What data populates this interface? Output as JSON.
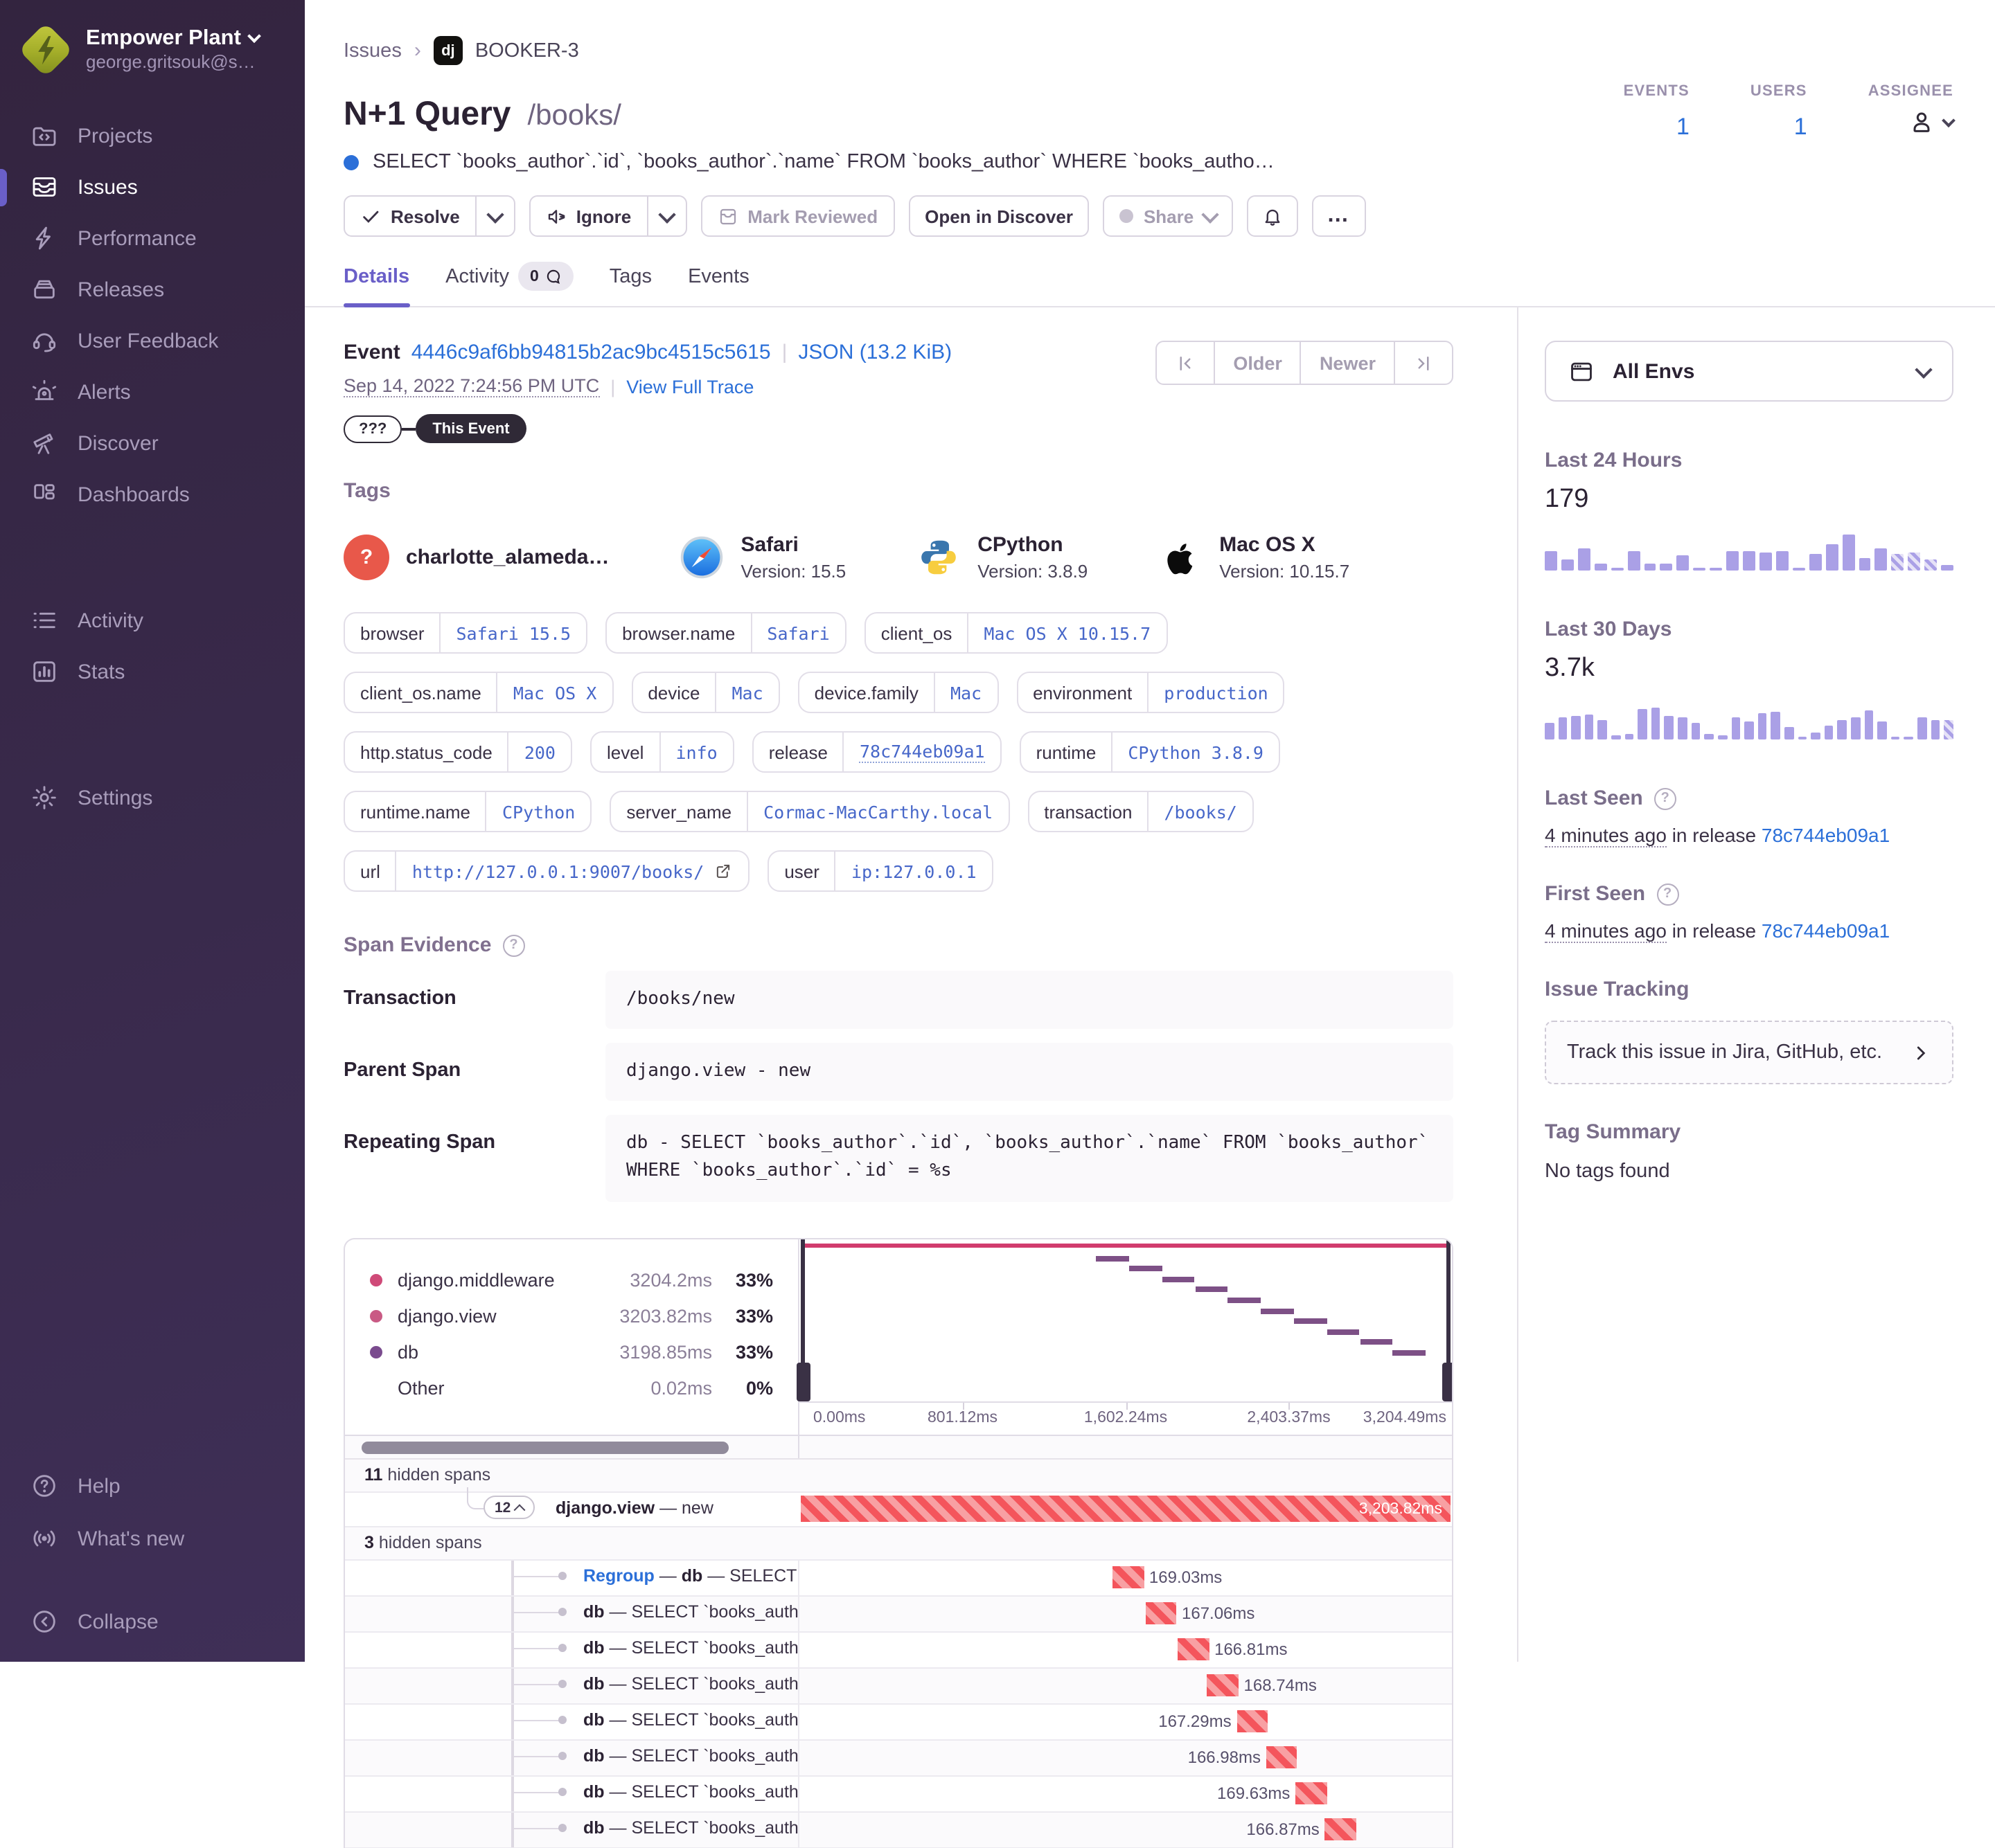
{
  "accent_color": "#6a5fc8",
  "link_color": "#2b6fd8",
  "error_red": "#f4555c",
  "chart_purple": "#aaa0e6",
  "sidebar": {
    "org": "Empower Plant",
    "user": "george.gritsouk@s…",
    "sections": [
      {
        "items": [
          {
            "label": "Projects",
            "icon": "projects-icon",
            "active": false
          },
          {
            "label": "Issues",
            "icon": "issues-icon",
            "active": true
          },
          {
            "label": "Performance",
            "icon": "performance-icon",
            "active": false
          },
          {
            "label": "Releases",
            "icon": "releases-icon",
            "active": false
          },
          {
            "label": "User Feedback",
            "icon": "feedback-icon",
            "active": false
          },
          {
            "label": "Alerts",
            "icon": "alerts-icon",
            "active": false
          },
          {
            "label": "Discover",
            "icon": "discover-icon",
            "active": false
          },
          {
            "label": "Dashboards",
            "icon": "dashboards-icon",
            "active": false
          }
        ]
      },
      {
        "items": [
          {
            "label": "Activity",
            "icon": "activity-icon",
            "active": false
          },
          {
            "label": "Stats",
            "icon": "stats-icon",
            "active": false
          }
        ]
      },
      {
        "items": [
          {
            "label": "Settings",
            "icon": "settings-icon",
            "active": false
          }
        ]
      }
    ],
    "footer": [
      {
        "label": "Help",
        "icon": "help-icon"
      },
      {
        "label": "What's new",
        "icon": "whats-new-icon"
      },
      {
        "label": "Collapse",
        "icon": "collapse-icon"
      }
    ]
  },
  "header": {
    "breadcrumb_root": "Issues",
    "project_badge": "dj",
    "breadcrumb_current": "BOOKER-3",
    "title": "N+1 Query",
    "title_path": "/books/",
    "subtitle": "SELECT `books_author`.`id`, `books_author`.`name` FROM `books_author` WHERE `books_autho…",
    "actions": {
      "resolve": "Resolve",
      "ignore": "Ignore",
      "mark_reviewed": "Mark Reviewed",
      "open_discover": "Open in Discover",
      "share": "Share",
      "more": "…"
    },
    "tabs": [
      {
        "label": "Details"
      },
      {
        "label": "Activity",
        "count": "0"
      },
      {
        "label": "Tags"
      },
      {
        "label": "Events"
      }
    ],
    "stats": {
      "events_label": "EVENTS",
      "events_value": "1",
      "users_label": "USERS",
      "users_value": "1",
      "assignee_label": "ASSIGNEE"
    }
  },
  "event": {
    "label": "Event",
    "id": "4446c9af6bb94815b2ac9bc4515c5615",
    "json_link": "JSON (13.2 KiB)",
    "timestamp": "Sep 14, 2022 7:24:56 PM UTC",
    "view_full_trace": "View Full Trace",
    "pill_unknown": "???",
    "pill_this_event": "This Event",
    "older": "Older",
    "newer": "Newer"
  },
  "tags": {
    "heading": "Tags",
    "featured": [
      {
        "name": "charlotte_alameda…",
        "icon": "question-avatar-icon",
        "version": ""
      },
      {
        "name": "Safari",
        "icon": "safari-icon",
        "version": "Version: 15.5"
      },
      {
        "name": "CPython",
        "icon": "python-icon",
        "version": "Version: 3.8.9"
      },
      {
        "name": "Mac OS X",
        "icon": "apple-icon",
        "version": "Version: 10.15.7"
      }
    ],
    "pills": [
      {
        "key": "browser",
        "value": "Safari 15.5"
      },
      {
        "key": "browser.name",
        "value": "Safari"
      },
      {
        "key": "client_os",
        "value": "Mac OS X 10.15.7"
      },
      {
        "key": "client_os.name",
        "value": "Mac OS X"
      },
      {
        "key": "device",
        "value": "Mac"
      },
      {
        "key": "device.family",
        "value": "Mac"
      },
      {
        "key": "environment",
        "value": "production"
      },
      {
        "key": "http.status_code",
        "value": "200"
      },
      {
        "key": "level",
        "value": "info"
      },
      {
        "key": "release",
        "value": "78c744eb09a1",
        "dotted": true
      },
      {
        "key": "runtime",
        "value": "CPython 3.8.9"
      },
      {
        "key": "runtime.name",
        "value": "CPython"
      },
      {
        "key": "server_name",
        "value": "Cormac-MacCarthy.local"
      },
      {
        "key": "transaction",
        "value": "/books/"
      },
      {
        "key": "url",
        "value": "http://127.0.0.1:9007/books/",
        "external": true
      },
      {
        "key": "user",
        "value": "ip:127.0.0.1"
      }
    ]
  },
  "span_evidence": {
    "heading": "Span Evidence",
    "rows": [
      {
        "label": "Transaction",
        "value": "/books/new"
      },
      {
        "label": "Parent Span",
        "value": "django.view - new"
      },
      {
        "label": "Repeating Span",
        "value": "db - SELECT `books_author`.`id`, `books_author`.`name` FROM `books_author` WHERE `books_author`.`id` = %s"
      }
    ]
  },
  "waterfall": {
    "legend": [
      {
        "name": "django.middleware",
        "time": "3204.2ms",
        "pct": "33%",
        "color": "#cf4a78"
      },
      {
        "name": "django.view",
        "time": "3203.82ms",
        "pct": "33%",
        "color": "#c95a84"
      },
      {
        "name": "db",
        "time": "3198.85ms",
        "pct": "33%",
        "color": "#7a4b8e"
      },
      {
        "name": "Other",
        "time": "0.02ms",
        "pct": "0%",
        "color": ""
      }
    ],
    "axis": [
      "0.00ms",
      "801.12ms",
      "1,602.24ms",
      "2,403.37ms",
      "3,204.49ms"
    ],
    "minimap_dashes": 10,
    "hidden_top_count": "11",
    "hidden_top_label": "hidden spans",
    "group_row": {
      "count": "12",
      "op": "django.view",
      "sep": "—",
      "desc": "new",
      "duration": "3,203.82ms"
    },
    "hidden_mid_count": "3",
    "hidden_mid_label": "hidden spans",
    "spans": [
      {
        "prefix": "Regroup",
        "op": "db",
        "desc": "SELECT `boo",
        "duration": "169.03ms",
        "x": 48,
        "label_side": "right"
      },
      {
        "prefix": "",
        "op": "db",
        "desc": "SELECT `books_author`",
        "duration": "167.06ms",
        "x": 53,
        "label_side": "right"
      },
      {
        "prefix": "",
        "op": "db",
        "desc": "SELECT `books_author`",
        "duration": "166.81ms",
        "x": 58,
        "label_side": "right"
      },
      {
        "prefix": "",
        "op": "db",
        "desc": "SELECT `books_author`",
        "duration": "168.74ms",
        "x": 62.5,
        "label_side": "right"
      },
      {
        "prefix": "",
        "op": "db",
        "desc": "SELECT `books_author`",
        "duration": "167.29ms",
        "x": 67,
        "label_side": "left"
      },
      {
        "prefix": "",
        "op": "db",
        "desc": "SELECT `books_author`",
        "duration": "166.98ms",
        "x": 71.5,
        "label_side": "left"
      },
      {
        "prefix": "",
        "op": "db",
        "desc": "SELECT `books_author`",
        "duration": "169.63ms",
        "x": 76,
        "label_side": "left"
      },
      {
        "prefix": "",
        "op": "db",
        "desc": "SELECT `books_author`",
        "duration": "166.87ms",
        "x": 80.5,
        "label_side": "left"
      }
    ]
  },
  "side_panel": {
    "env_filter": "All Envs",
    "last24": {
      "label": "Last 24 Hours",
      "value": "179",
      "bars": [
        55,
        30,
        60,
        20,
        8,
        55,
        18,
        18,
        42,
        6,
        6,
        55,
        55,
        50,
        55,
        6,
        45,
        75,
        100,
        35,
        60,
        45,
        50,
        30,
        15
      ],
      "hatched": [
        21,
        22,
        23
      ]
    },
    "last30": {
      "label": "Last 30 Days",
      "value": "3.7k",
      "bars": [
        45,
        62,
        65,
        68,
        55,
        12,
        15,
        85,
        87,
        65,
        60,
        45,
        15,
        10,
        62,
        50,
        72,
        78,
        35,
        8,
        20,
        40,
        55,
        62,
        80,
        50,
        8,
        8,
        60,
        55,
        55
      ],
      "hatched": [
        30
      ]
    },
    "last_seen": {
      "label": "Last Seen",
      "time": "4 minutes ago",
      "middle": "in release",
      "release": "78c744eb09a1"
    },
    "first_seen": {
      "label": "First Seen",
      "time": "4 minutes ago",
      "middle": "in release",
      "release": "78c744eb09a1"
    },
    "issue_tracking": {
      "label": "Issue Tracking",
      "button": "Track this issue in Jira, GitHub, etc."
    },
    "tag_summary": {
      "label": "Tag Summary",
      "empty": "No tags found"
    }
  }
}
